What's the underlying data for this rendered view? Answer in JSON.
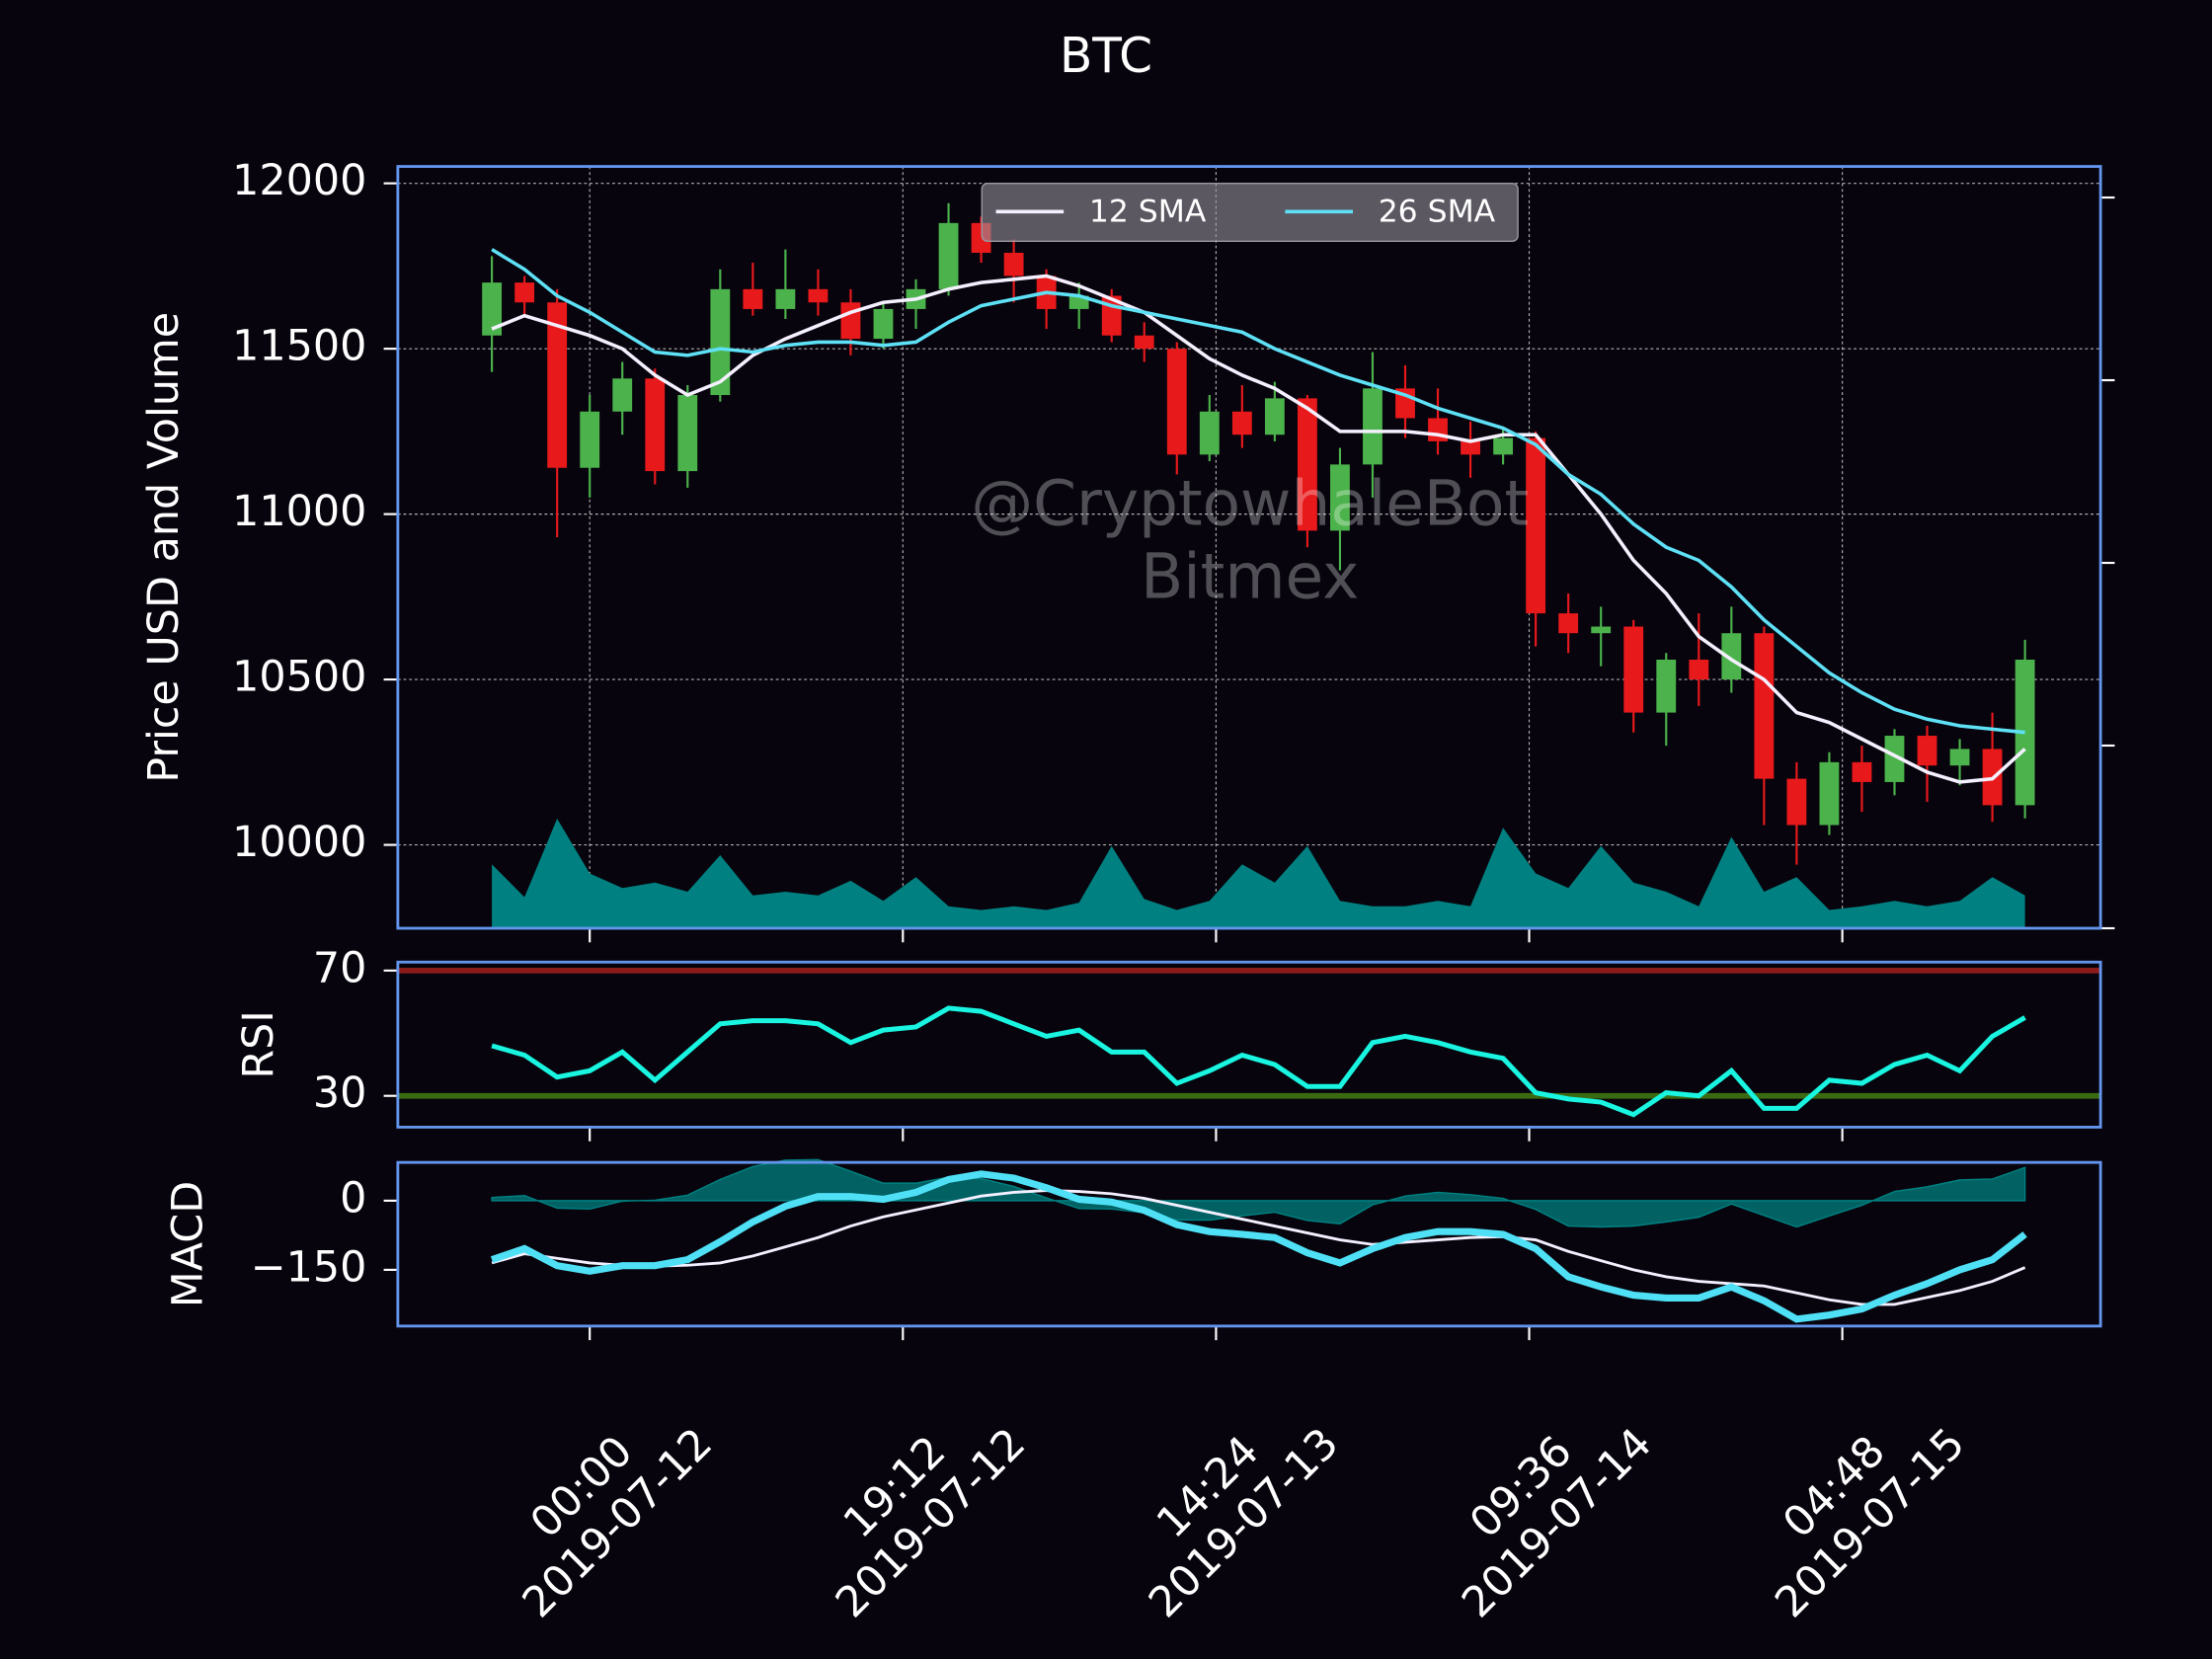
{
  "chart_data": [
    {
      "type": "candlestick",
      "title": "BTC",
      "ylabel": "Price USD and Volume",
      "x": [
        "2019-07-11 18:00",
        "2019-07-11 20:00",
        "2019-07-11 22:00",
        "2019-07-12 00:00",
        "2019-07-12 02:00",
        "2019-07-12 04:00",
        "2019-07-12 06:00",
        "2019-07-12 08:00",
        "2019-07-12 10:00",
        "2019-07-12 12:00",
        "2019-07-12 14:00",
        "2019-07-12 16:00",
        "2019-07-12 18:00",
        "2019-07-12 20:00",
        "2019-07-12 22:00",
        "2019-07-13 00:00",
        "2019-07-13 02:00",
        "2019-07-13 04:00",
        "2019-07-13 06:00",
        "2019-07-13 08:00",
        "2019-07-13 10:00",
        "2019-07-13 12:00",
        "2019-07-13 14:00",
        "2019-07-13 16:00",
        "2019-07-13 18:00",
        "2019-07-13 20:00",
        "2019-07-13 22:00",
        "2019-07-14 00:00",
        "2019-07-14 02:00",
        "2019-07-14 04:00",
        "2019-07-14 06:00",
        "2019-07-14 08:00",
        "2019-07-14 10:00",
        "2019-07-14 12:00",
        "2019-07-14 14:00",
        "2019-07-14 16:00",
        "2019-07-14 18:00",
        "2019-07-14 20:00",
        "2019-07-14 22:00",
        "2019-07-15 00:00",
        "2019-07-15 02:00",
        "2019-07-15 04:00",
        "2019-07-15 06:00",
        "2019-07-15 08:00",
        "2019-07-15 10:00",
        "2019-07-15 12:00",
        "2019-07-15 14:00",
        "2019-07-15 16:00"
      ],
      "open": [
        11540,
        11700,
        11640,
        11140,
        11310,
        11410,
        11130,
        11360,
        11680,
        11620,
        11680,
        11640,
        11530,
        11620,
        11680,
        11880,
        11790,
        11720,
        11620,
        11660,
        11540,
        11500,
        11180,
        11310,
        11240,
        11350,
        10950,
        11150,
        11380,
        11290,
        11220,
        11180,
        11230,
        10700,
        10640,
        10660,
        10400,
        10560,
        10500,
        10640,
        10200,
        10060,
        10250,
        10190,
        10330,
        10240,
        10290,
        10120
      ],
      "high": [
        11780,
        11720,
        11680,
        11360,
        11460,
        11440,
        11390,
        11740,
        11760,
        11800,
        11740,
        11680,
        11640,
        11710,
        11940,
        11900,
        11830,
        11740,
        11700,
        11680,
        11580,
        11520,
        11360,
        11390,
        11400,
        11360,
        11200,
        11490,
        11450,
        11380,
        11280,
        11260,
        11250,
        10760,
        10720,
        10680,
        10580,
        10700,
        10720,
        10660,
        10250,
        10280,
        10300,
        10350,
        10360,
        10320,
        10400,
        10620
      ],
      "low": [
        11430,
        11600,
        10930,
        11050,
        11240,
        11090,
        11080,
        11340,
        11600,
        11590,
        11600,
        11480,
        11500,
        11560,
        11660,
        11760,
        11640,
        11560,
        11560,
        11520,
        11460,
        11120,
        11160,
        11200,
        11220,
        10900,
        10830,
        11050,
        11230,
        11180,
        11110,
        11150,
        10600,
        10580,
        10540,
        10340,
        10300,
        10420,
        10460,
        10060,
        9940,
        10030,
        10100,
        10150,
        10130,
        10180,
        10070,
        10080
      ],
      "close": [
        11700,
        11640,
        11140,
        11310,
        11410,
        11130,
        11360,
        11680,
        11620,
        11680,
        11640,
        11530,
        11620,
        11680,
        11880,
        11790,
        11720,
        11620,
        11660,
        11540,
        11500,
        11180,
        11310,
        11240,
        11350,
        10950,
        11150,
        11380,
        11290,
        11220,
        11180,
        11230,
        10700,
        10640,
        10660,
        10400,
        10560,
        10500,
        10640,
        10200,
        10060,
        10250,
        10190,
        10330,
        10240,
        10290,
        10120,
        10560
      ],
      "up_color": "#4cb34c",
      "down_color": "#e8191b",
      "series": [
        {
          "name": "12 SMA",
          "color": "#f4f0ff",
          "values": [
            11560,
            11600,
            11570,
            11540,
            11500,
            11420,
            11360,
            11400,
            11480,
            11530,
            11570,
            11610,
            11640,
            11650,
            11680,
            11700,
            11710,
            11720,
            11690,
            11650,
            11610,
            11540,
            11470,
            11420,
            11380,
            11320,
            11250,
            11250,
            11250,
            11240,
            11220,
            11240,
            11240,
            11120,
            11000,
            10860,
            10760,
            10630,
            10560,
            10500,
            10400,
            10370,
            10320,
            10270,
            10220,
            10190,
            10200,
            10290
          ]
        },
        {
          "name": "26 SMA",
          "color": "#5ee0f5",
          "values": [
            11800,
            11740,
            11660,
            11610,
            11550,
            11490,
            11480,
            11500,
            11490,
            11510,
            11520,
            11520,
            11510,
            11520,
            11580,
            11630,
            11650,
            11670,
            11660,
            11630,
            11610,
            11590,
            11570,
            11550,
            11500,
            11460,
            11420,
            11390,
            11360,
            11320,
            11290,
            11260,
            11210,
            11120,
            11060,
            10970,
            10900,
            10860,
            10780,
            10680,
            10600,
            10520,
            10460,
            10410,
            10380,
            10360,
            10350,
            10340
          ]
        }
      ],
      "volume": {
        "color": "#008080",
        "values": [
          0.35,
          0.17,
          0.6,
          0.3,
          0.22,
          0.25,
          0.2,
          0.4,
          0.18,
          0.2,
          0.18,
          0.26,
          0.15,
          0.28,
          0.12,
          0.1,
          0.12,
          0.1,
          0.14,
          0.45,
          0.16,
          0.1,
          0.15,
          0.35,
          0.25,
          0.45,
          0.15,
          0.12,
          0.12,
          0.15,
          0.12,
          0.55,
          0.3,
          0.22,
          0.45,
          0.25,
          0.2,
          0.12,
          0.5,
          0.2,
          0.28,
          0.1,
          0.12,
          0.15,
          0.12,
          0.15,
          0.28,
          0.18
        ]
      },
      "xlim": [
        "2019-07-11 12:14",
        "2019-07-15 20:38"
      ],
      "xticks": [
        {
          "value": "2019-07-12 00:00",
          "label": "00:00\n2019-07-12"
        },
        {
          "value": "2019-07-12 19:12",
          "label": "19:12\n2019-07-12"
        },
        {
          "value": "2019-07-13 14:24",
          "label": "14:24\n2019-07-13"
        },
        {
          "value": "2019-07-14 09:36",
          "label": "09:36\n2019-07-14"
        },
        {
          "value": "2019-07-15 04:48",
          "label": "04:48\n2019-07-15"
        }
      ],
      "ylim": [
        9748,
        12051
      ],
      "yticks": [
        10000,
        10500,
        11000,
        11500,
        12000
      ],
      "y2lim": [
        0,
        4.17
      ],
      "y2ticks": [
        0,
        1,
        2,
        3,
        4
      ],
      "grid": true,
      "legend": "upper center",
      "annotations": [
        "@CryptowhaleBot",
        "Bitmex"
      ]
    },
    {
      "type": "line",
      "ylabel": "RSI",
      "series": [
        {
          "color": "#19f5e0",
          "values": [
            46,
            43,
            36,
            38,
            44,
            35,
            44,
            53,
            54,
            54,
            53,
            47,
            51,
            52,
            58,
            57,
            53,
            49,
            51,
            44,
            44,
            34,
            38,
            43,
            40,
            33,
            33,
            47,
            49,
            47,
            44,
            42,
            31,
            29,
            28,
            24,
            31,
            30,
            38,
            26,
            26,
            35,
            34,
            40,
            43,
            38,
            49,
            55
          ]
        }
      ],
      "hlines": [
        {
          "value": 70,
          "color": "#8b1a1a"
        },
        {
          "value": 30,
          "color": "#3a6b12"
        }
      ],
      "ylim": [
        20,
        72.7
      ],
      "yticks": [
        30,
        70
      ]
    },
    {
      "type": "macd",
      "ylabel": "MACD",
      "series": [
        {
          "color": "#f4f0ff",
          "linewidth": 2,
          "values": [
            -135,
            -115,
            -125,
            -135,
            -140,
            -142,
            -140,
            -135,
            -120,
            -100,
            -80,
            -55,
            -35,
            -20,
            -5,
            10,
            18,
            22,
            20,
            15,
            5,
            -10,
            -25,
            -40,
            -55,
            -70,
            -85,
            -95,
            -90,
            -85,
            -80,
            -78,
            -85,
            -110,
            -130,
            -150,
            -165,
            -175,
            -180,
            -185,
            -200,
            -215,
            -225,
            -225,
            -210,
            -195,
            -175,
            -145
          ]
        },
        {
          "color": "#4fe0f5",
          "linewidth": 5,
          "values": [
            -128,
            -104,
            -141,
            -153,
            -141,
            -141,
            -128,
            -89,
            -46,
            -12,
            9,
            9,
            3,
            18,
            46,
            58,
            49,
            28,
            3,
            -3,
            -21,
            -52,
            -67,
            -73,
            -80,
            -113,
            -135,
            -104,
            -80,
            -67,
            -67,
            -73,
            -104,
            -165,
            -187,
            -205,
            -211,
            -211,
            -187,
            -217,
            -257,
            -248,
            -235,
            -205,
            -180,
            -150,
            -128,
            -73
          ]
        }
      ],
      "histogram": {
        "color": "#008080",
        "values": [
          7,
          11,
          -16,
          -18,
          -1,
          1,
          12,
          46,
          74,
          88,
          89,
          64,
          38,
          38,
          51,
          48,
          31,
          6,
          -17,
          -18,
          -26,
          -42,
          -42,
          -33,
          -25,
          -43,
          -50,
          -9,
          10,
          18,
          13,
          5,
          -19,
          -55,
          -57,
          -55,
          -46,
          -36,
          -7,
          -32,
          -57,
          -33,
          -10,
          20,
          30,
          45,
          47,
          72
        ]
      },
      "ylim": [
        -272,
        83
      ],
      "yticks": [
        0,
        {
          "value": -150,
          "label": "−150"
        }
      ]
    }
  ]
}
